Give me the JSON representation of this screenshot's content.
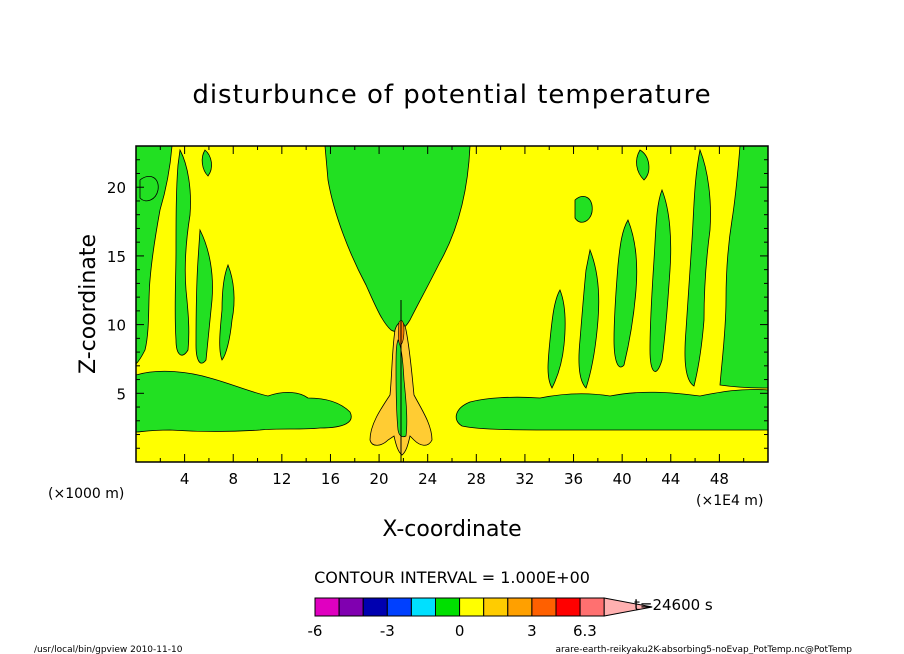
{
  "chart_data": {
    "type": "contour",
    "title": "disturbunce of potential temperature",
    "xlabel": "X-coordinate",
    "ylabel": "Z-coordinate",
    "x_unit_left": "(×1000 m)",
    "x_unit_right": "(×1E4 m)",
    "xlim": [
      0,
      52
    ],
    "ylim": [
      0,
      23
    ],
    "x_ticks": [
      "4",
      "8",
      "12",
      "16",
      "20",
      "24",
      "28",
      "32",
      "36",
      "40",
      "44",
      "48"
    ],
    "y_ticks": [
      "5",
      "10",
      "15",
      "20"
    ],
    "contour_interval": "CONTOUR INTERVAL = 1.000E+00",
    "time_label": "t=24600 s",
    "colorbar": {
      "levels": [
        "-6",
        "-3",
        "0",
        "3",
        "6.3"
      ],
      "colors": [
        "#e000c0",
        "#8000b0",
        "#0000b0",
        "#0040ff",
        "#00e0ff",
        "#00e000",
        "#ffff00",
        "#ffcc00",
        "#ffa000",
        "#ff6000",
        "#ff0000",
        "#ff7070",
        "#ffb0b0"
      ]
    },
    "regions": [
      {
        "value": "0 to 1",
        "color": "#ffff00",
        "description": "background"
      },
      {
        "value": "-1 to 0",
        "color": "#22e022",
        "description": "green cold anomalies"
      },
      {
        "value": "1 to 2",
        "color": "#ffcc33",
        "description": "warm anomaly near x=21"
      }
    ]
  },
  "footer": {
    "left": "/usr/local/bin/gpview  2010-11-10",
    "right": "arare-earth-reikyaku2K-absorbing5-noEvap_PotTemp.nc@PotTemp"
  }
}
